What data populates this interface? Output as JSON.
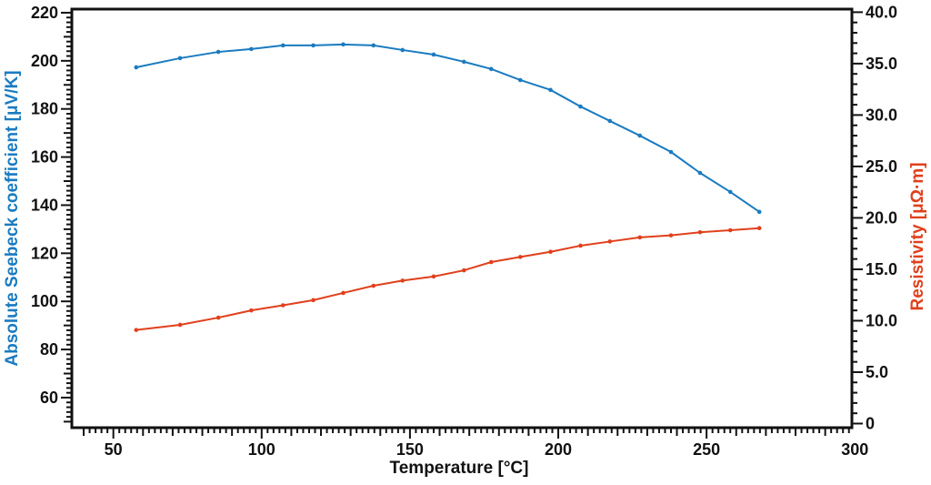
{
  "chart_data": {
    "type": "line",
    "title": "",
    "xlabel": "Temperature [°C]",
    "ylabel_left": "Absolute Seebeck coefficient [μV/K]",
    "ylabel_right": "Resistivity [μΩ·m]",
    "xlim": [
      36,
      299
    ],
    "ylim_left": [
      47.5,
      221.5
    ],
    "ylim_right": [
      -0.4,
      40.3
    ],
    "x_ticks": [
      "50",
      "100",
      "150",
      "200",
      "250",
      "300"
    ],
    "y_left_ticks": [
      "60",
      "80",
      "100",
      "120",
      "140",
      "160",
      "180",
      "200",
      "220"
    ],
    "y_right_ticks": [
      "0",
      "5.0",
      "10.0",
      "15.0",
      "20.0",
      "25.0",
      "30.0",
      "35.0",
      "40.0"
    ],
    "grid": false,
    "x": [
      57.7,
      72.5,
      85.4,
      96.5,
      107.2,
      117.4,
      127.5,
      137.7,
      147.5,
      158,
      168.2,
      177.4,
      187.2,
      197.4,
      207.5,
      217.4,
      227.5,
      238,
      247.8,
      258,
      267.8
    ],
    "series": [
      {
        "name": "Absolute Seebeck coefficient",
        "axis": "left",
        "color": "#1a7bc0",
        "values": [
          197.3,
          201.1,
          203.7,
          204.9,
          206.4,
          206.4,
          206.8,
          206.4,
          204.5,
          202.6,
          199.6,
          196.6,
          192,
          187.9,
          181,
          175,
          168.9,
          162.1,
          153.4,
          145.5,
          137.2
        ]
      },
      {
        "name": "Resistivity",
        "axis": "right",
        "color": "#e0401c",
        "values": [
          9.1,
          9.6,
          10.3,
          11.0,
          11.5,
          12.0,
          12.7,
          13.4,
          13.9,
          14.3,
          14.9,
          15.7,
          16.2,
          16.7,
          17.3,
          17.7,
          18.1,
          18.3,
          18.6,
          18.8,
          19.0
        ]
      }
    ]
  }
}
